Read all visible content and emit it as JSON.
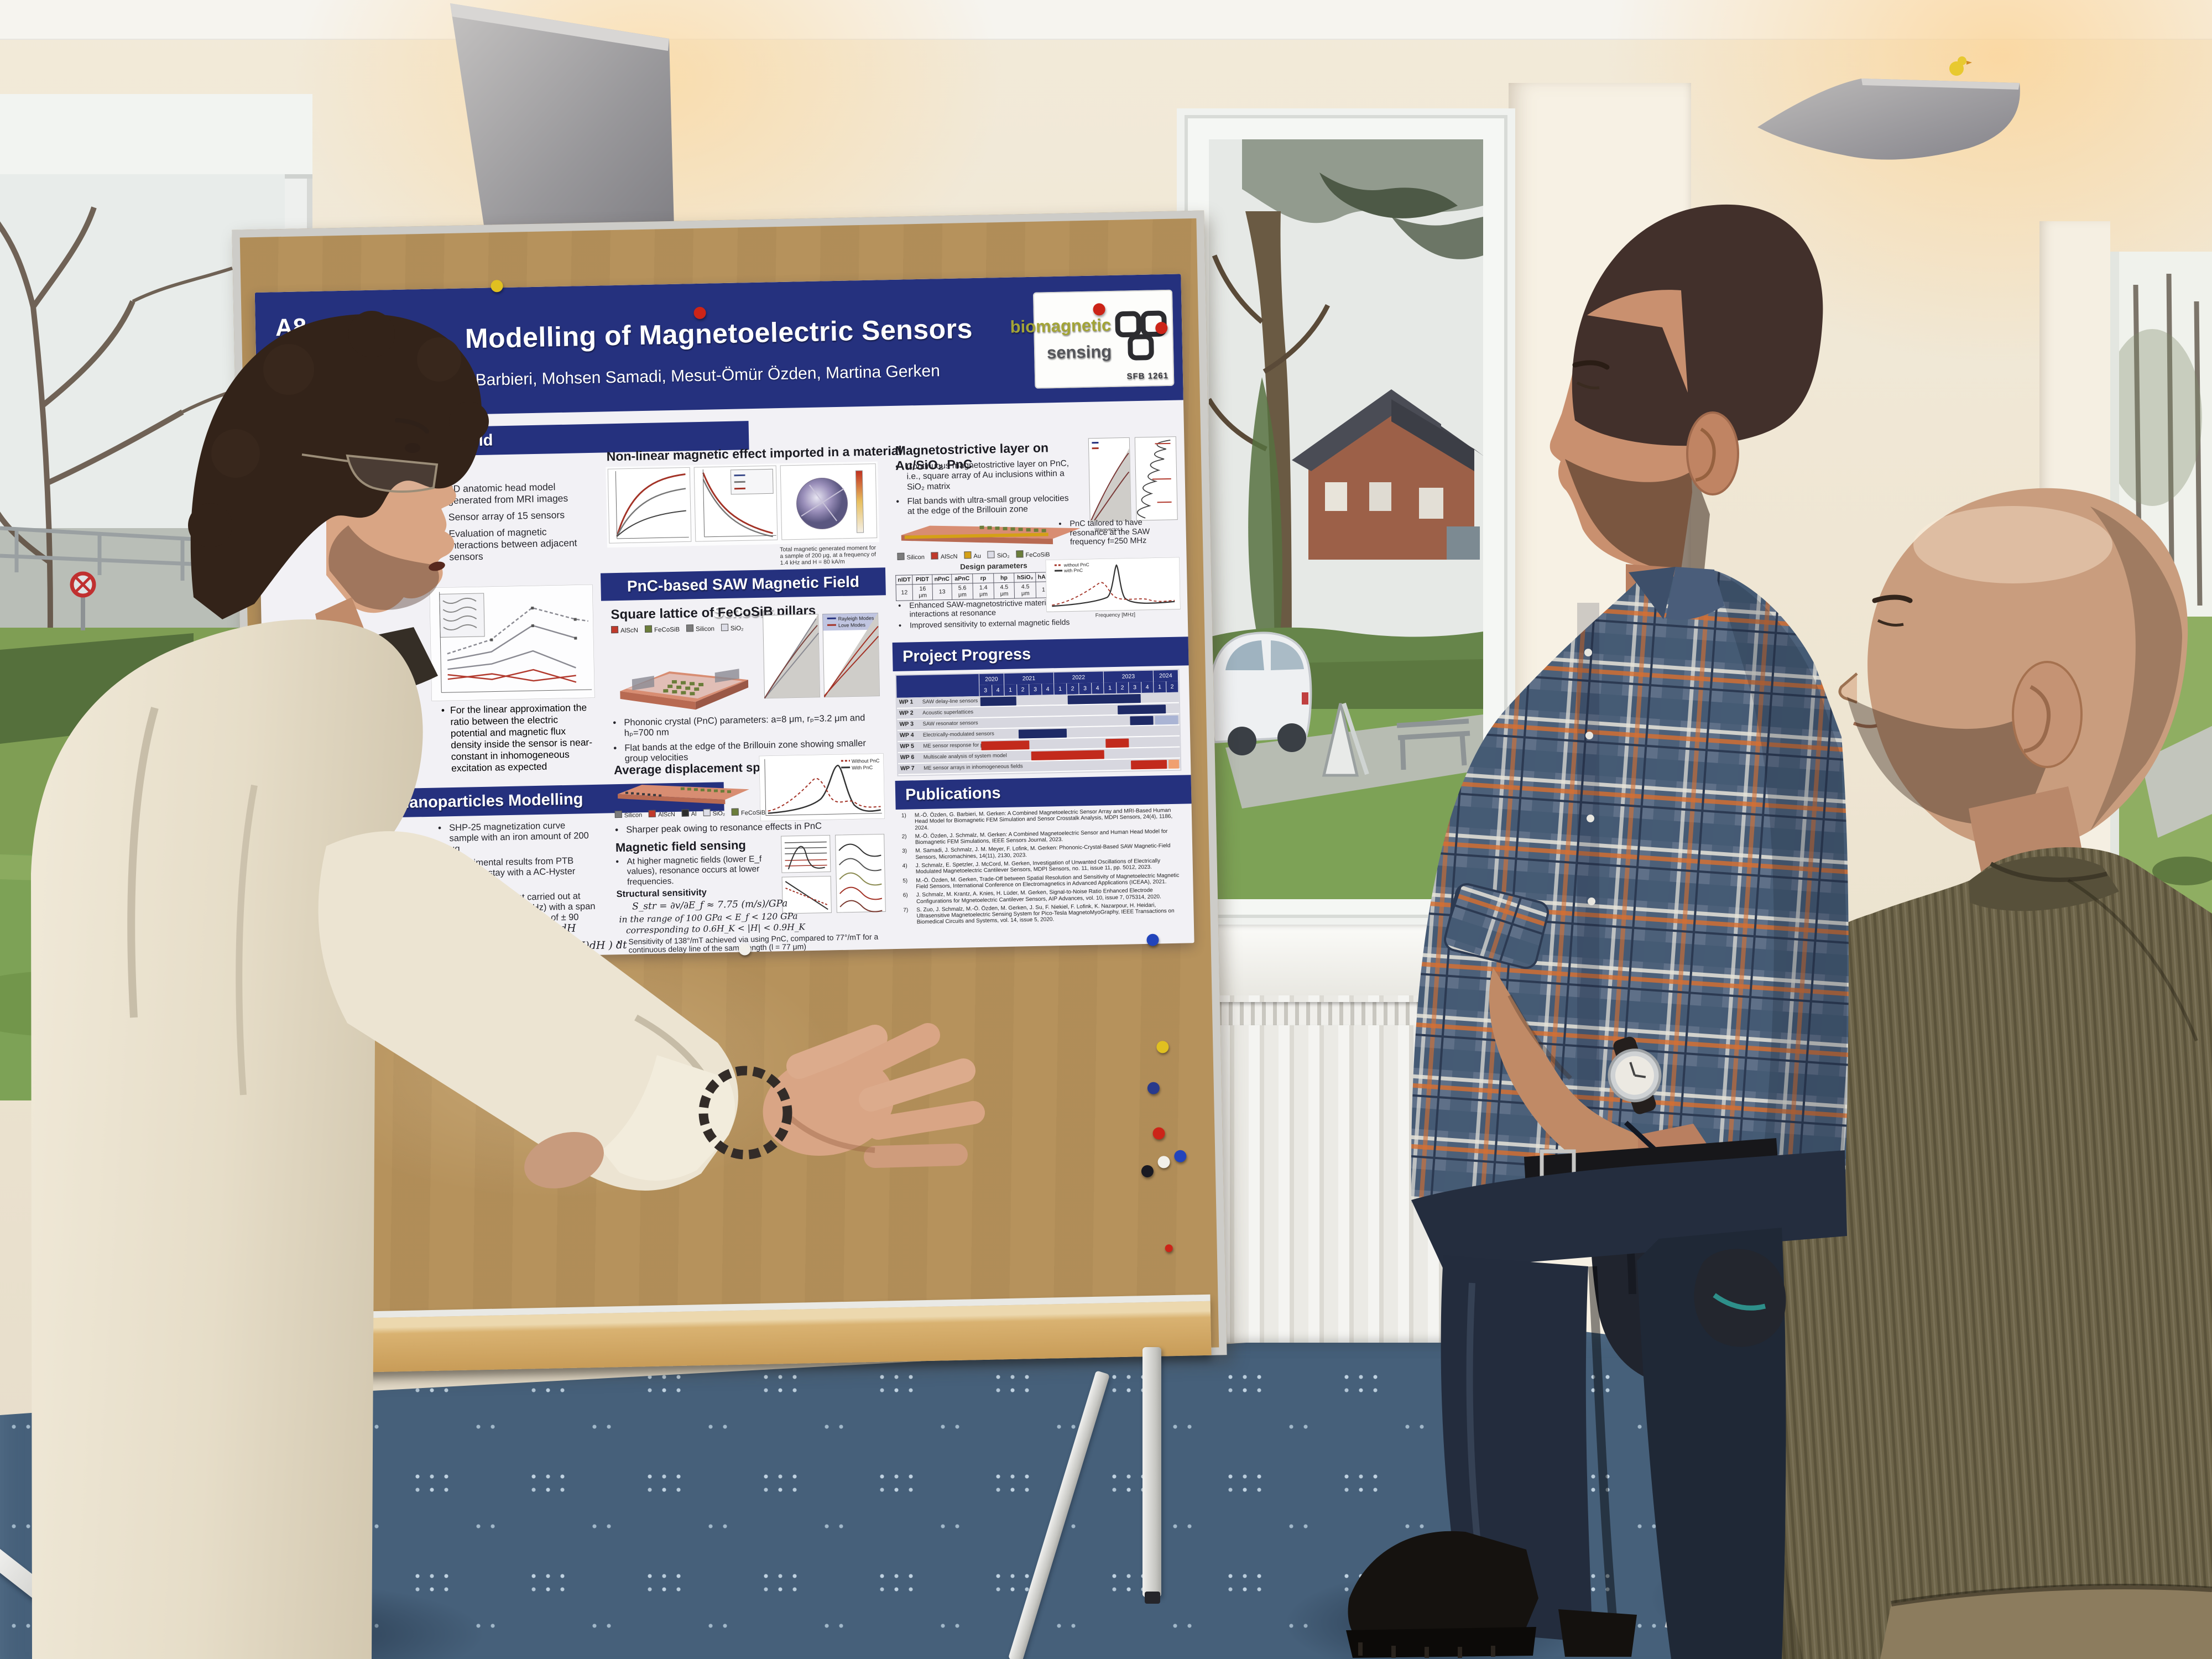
{
  "colors": {
    "poster_navy": "#25317e",
    "board_cork": "#b6925c",
    "carpet": "#46607a",
    "chair_pink": "#e4625f",
    "sweater_olive": "#6d6449",
    "shirt_plaid_base": "#5f7088",
    "jacket_cream": "#e9e1cd",
    "gantt_navy": "#1e2a66",
    "gantt_red": "#c22a1c",
    "gantt_lightblue": "#aab4d4",
    "gantt_orange": "#f0a070"
  },
  "poster": {
    "badge": "A8",
    "title": "Modelling of Magnetoelectric Sensors",
    "authors": "Giuseppe Barbieri, Mohsen Samadi, Mesut-Ömür Özden, Martina Gerken",
    "logo": {
      "line1": "biomagnetic",
      "line2": "sensing",
      "sub": "SFB 1261"
    },
    "left_column": {
      "header_fragment": "ous Field",
      "fragment2": "on",
      "bullets": [
        "3D anatomic head model generated from MRI images",
        "Sensor array of 15 sensors",
        "Evaluation of magnetic interactions between adjacent sensors"
      ],
      "note": "For the linear approximation the ratio between the electric potential and magnetic flux density inside the sensor is near-constant in inhomogeneous excitation as expected",
      "header2": "Nanoparticles Modelling",
      "bullets2": [
        "SHP-25 magnetization curve sample with an iron amount of 200 μg",
        "Experimental results from PTB research stay with a AC-Hyster device",
        "The measurement carried out at low frequency (1.4 kHz) with a span magnetic field excitation of ± 90 kA/m"
      ],
      "formula1": "B�E = 2/H ∫₀ᴴ B(H)dH",
      "formula1_fix": "B_SE = 2/H ∫₀ᴴ B(H)dH",
      "formula2": "B_AE = 16/TH ∫₀ᵀ/⁴ ( ∫ B(H)dH ) dt"
    },
    "middle_column": {
      "chart_header": "Non-linear magnetic effect imported in a material",
      "chart_caption": "Total magnetic generated moment for a sample of 200 μg, at a frequency of 1.4 kHz and H = 80 kA/m",
      "section": "PnC-based SAW Magnetic Field Sensors",
      "sub1": "Square lattice of FeCoSiB pillars",
      "legend1": [
        {
          "label": "AlScN",
          "color": "#c0392b"
        },
        {
          "label": "FeCoSiB",
          "color": "#6b7d3a"
        },
        {
          "label": "Silicon",
          "color": "#7b7b7b"
        },
        {
          "label": "SiO₂",
          "color": "#dcdce6"
        }
      ],
      "band_legend": [
        {
          "label": "Rayleigh Modes",
          "color": "#25317e"
        },
        {
          "label": "Love Modes",
          "color": "#a33327"
        }
      ],
      "bullets": [
        "Phononic crystal (PnC) parameters: a=8 μm, rₚ=3.2 μm and hₚ=700 nm",
        "Flat bands at the edge of the Brillouin zone showing smaller group velocities"
      ],
      "sub2": "Average displacement spectra",
      "legend2": [
        {
          "label": "Silicon",
          "color": "#7b7b7b"
        },
        {
          "label": "AlScN",
          "color": "#c0392b"
        },
        {
          "label": "Al",
          "color": "#2c2c2c"
        },
        {
          "label": "SiO₂",
          "color": "#dcdce6"
        },
        {
          "label": "FeCoSiB",
          "color": "#6b7d3a"
        }
      ],
      "spectra_legend": [
        {
          "label": "Without PnC",
          "color": "#a33327"
        },
        {
          "label": "With PnC",
          "color": "#333333"
        }
      ],
      "bullet2": "Sharper peak owing to resonance effects in PnC",
      "sub3": "Magnetic field sensing",
      "bullet3": "At higher magnetic fields (lower E_f values), resonance occurs at lower frequencies.",
      "formula_title": "Structural sensitivity",
      "formula": "S_str = ∂v/∂E_f ≈ 7.75 (m/s)/GPa",
      "range1": "in the range of 100 GPa < E_f < 120 GPa",
      "range2": "corresponding to 0.6H� < |H| < 0.9H�",
      "range2_fix": "corresponding to 0.6H_K < |H| < 0.9H_K",
      "bullet4": "Sensitivity of 138°/mT achieved via using PnC, compared to 77°/mT for a continuous delay line of the same length (l = 77 μm)"
    },
    "right_column": {
      "header": "Magnetostrictive layer on Au/SiO₂ PnC",
      "bullets": [
        "Continuous magnetostrictive layer on PnC, i.e., square array of Au inclusions within a SiO₂ matrix",
        "Flat bands with ultra-small group velocities at the edge of the Brillouin zone"
      ],
      "legend": [
        {
          "label": "Silicon",
          "color": "#7b7b7b"
        },
        {
          "label": "AlScN",
          "color": "#c0392b"
        },
        {
          "label": "Au",
          "color": "#d4a017"
        },
        {
          "label": "SiO₂",
          "color": "#dcdce6"
        },
        {
          "label": "FeCoSiB",
          "color": "#6b7d3a"
        }
      ],
      "table_caption": "Design parameters",
      "table_headers": [
        "nIDT",
        "PIDT",
        "nPnC",
        "aPnC",
        "rp",
        "hp",
        "hSiO₂",
        "hAlScN",
        "hFeCoSiB"
      ],
      "table_values": [
        "12",
        "16 μm",
        "13",
        "5.6 μm",
        "1.4 μm",
        "4.5 μm",
        "4.5 μm",
        "1 μm",
        "200 nm"
      ],
      "side_note": "PnC tailored to have resonance at the SAW frequency f=250 MHz",
      "bullets2": [
        "Enhanced SAW-magnetostrictive material interactions at resonance",
        "Improved sensitivity to external magnetic fields"
      ],
      "plot_legend": [
        {
          "label": "without PnC",
          "color": "#a33327"
        },
        {
          "label": "with PnC",
          "color": "#333333"
        }
      ],
      "plot_xlabel": "Frequency [MHz]",
      "progress_title": "Project Progress",
      "gantt": {
        "years": [
          {
            "label": "2020",
            "span": 2
          },
          {
            "label": "2021",
            "span": 4
          },
          {
            "label": "2022",
            "span": 4
          },
          {
            "label": "2023",
            "span": 4
          },
          {
            "label": "2024",
            "span": 2
          }
        ],
        "quarters": [
          "3",
          "4",
          "1",
          "2",
          "3",
          "4",
          "1",
          "2",
          "3",
          "4",
          "1",
          "2",
          "3",
          "4",
          "1",
          "2"
        ],
        "rows": [
          {
            "id": "WP 1",
            "label": "SAW delay-line sensors"
          },
          {
            "id": "WP 2",
            "label": "Acoustic superlattices"
          },
          {
            "id": "WP 3",
            "label": "SAW resonator sensors"
          },
          {
            "id": "WP 4",
            "label": "Electrically-modulated sensors"
          },
          {
            "id": "WP 5",
            "label": "ME sensor response for point excitation"
          },
          {
            "id": "WP 6",
            "label": "Multiscale analysis of system model"
          },
          {
            "id": "WP 7",
            "label": "ME sensor arrays in inhomogeneous fields"
          }
        ],
        "bars": [
          {
            "row": 0,
            "start": 0,
            "end": 2,
            "color": "navy"
          },
          {
            "row": 0,
            "start": 7,
            "end": 12,
            "color": "navy"
          },
          {
            "row": 1,
            "start": 11,
            "end": 14,
            "color": "navy"
          },
          {
            "row": 2,
            "start": 12,
            "end": 13,
            "color": "navy"
          },
          {
            "row": 2,
            "start": 14,
            "end": 15,
            "color": "lightblue"
          },
          {
            "row": 3,
            "start": 3,
            "end": 6,
            "color": "navy"
          },
          {
            "row": 4,
            "start": 0,
            "end": 3,
            "color": "red"
          },
          {
            "row": 4,
            "start": 10,
            "end": 11,
            "color": "red"
          },
          {
            "row": 5,
            "start": 4,
            "end": 9,
            "color": "red"
          },
          {
            "row": 6,
            "start": 12,
            "end": 14,
            "color": "red"
          },
          {
            "row": 6,
            "start": 15,
            "end": 15,
            "color": "orange"
          }
        ]
      },
      "publications_title": "Publications",
      "publications": [
        "M.-Ö. Özden, G. Barbieri, M. Gerken: A Combined Magnetoelectric Sensor Array and MRI-Based Human Head Model for Biomagnetic FEM Simulation and Sensor Crosstalk Analysis, MDPI Sensors, 24(4), 1186, 2024.",
        "M.-Ö. Özden, J. Schmalz, M. Gerken: A Combined Magnetoelectric Sensor and Human Head Model for Biomagnetic FEM Simulations, IEEE Sensors Journal, 2023.",
        "M. Samadi, J. Schmalz, J. M. Meyer, F. Lofink, M. Gerken: Phononic-Crystal-Based SAW Magnetic-Field Sensors, Micromachines, 14(11), 2130, 2023.",
        "J. Schmalz, E. Spetzler, J. McCord, M. Gerken, Investigation of Unwanted Oscillations of Electrically Modulated Magnetoelectric Cantilever Sensors, MDPI Sensors, no. 11, issue 11, pp. 5012, 2023.",
        "M.-Ö. Özden, M. Gerken, Trade-Off between Spatial Resolution and Sensitivity of Magnetoelectric Magnetic Field Sensors, International Conference on Electromagnetics in Advanced Applications (ICEAA), 2021.",
        "J. Schmalz, M. Krantz, A. Knies, H. Lüder, M. Gerken, Signal-to-Noise Ratio Enhanced Electrode Configurations for Mgnetoelectric Cantilever Sensors, AIP Advances, vol. 10, issue 7, 075314, 2020.",
        "S. Zuo, J. Schmalz, M.-Ö. Özden, M. Gerken, J. Su, F. Niekiel, F. Lofink, K. Nazarpour, H. Heidari, Ultrasensitive Magnetoelectric Sensing System for Pico-Tesla MagnetoMyoGraphy, IEEE Transactions on Biomedical Circuits and Systems, vol. 14, issue 5, 2020."
      ]
    }
  }
}
